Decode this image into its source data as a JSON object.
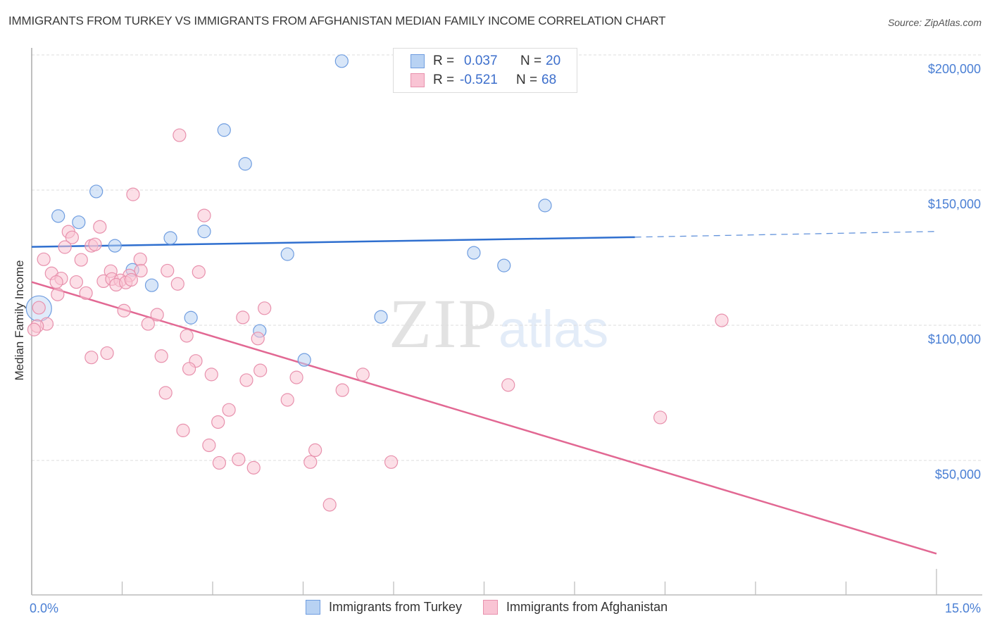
{
  "header": {
    "title": "IMMIGRANTS FROM TURKEY VS IMMIGRANTS FROM AFGHANISTAN MEDIAN FAMILY INCOME CORRELATION CHART",
    "source": "Source: ZipAtlas.com"
  },
  "legend_stats": [
    {
      "r_label": "R =",
      "r_value": "0.037",
      "n_label": "N =",
      "n_value": "20"
    },
    {
      "r_label": "R =",
      "r_value": "-0.521",
      "n_label": "N =",
      "n_value": "68"
    }
  ],
  "watermark": {
    "zip": "ZIP",
    "atlas": "atlas"
  },
  "colors": {
    "turkey_fill": "#b8d2f3",
    "turkey_stroke": "#6f9de0",
    "turkey_line": "#2f6fcf",
    "afghanistan_fill": "#f9c4d4",
    "afghanistan_stroke": "#e891ad",
    "afghanistan_line": "#e26893",
    "axis_text": "#4a7fd4"
  },
  "chart_data": {
    "type": "scatter",
    "title": "IMMIGRANTS FROM TURKEY VS IMMIGRANTS FROM AFGHANISTAN MEDIAN FAMILY INCOME CORRELATION CHART",
    "xlabel": "",
    "ylabel": "Median Family Income",
    "xlim": [
      0,
      15
    ],
    "ylim": [
      0,
      205000
    ],
    "x_tick_labels": [
      {
        "value": 0,
        "label": "0.0%"
      },
      {
        "value": 15,
        "label": "15.0%"
      }
    ],
    "x_minor_ticks": [
      0,
      1.5,
      3,
      4.5,
      6,
      7.5,
      9,
      10.5,
      12,
      13.5,
      15
    ],
    "y_ticks": [
      {
        "value": 50000,
        "label": "$50,000"
      },
      {
        "value": 100000,
        "label": "$100,000"
      },
      {
        "value": 150000,
        "label": "$150,000"
      },
      {
        "value": 200000,
        "label": "$200,000"
      }
    ],
    "grid": true,
    "legend_position": "bottom-center",
    "series": [
      {
        "name": "Immigrants from Turkey",
        "r": 0.037,
        "n": 20,
        "trend": {
          "x0": 0,
          "y0": 129000,
          "x_solid_end": 10.0,
          "y_solid_end": 132600,
          "x1": 15,
          "y1": 134700
        },
        "points": [
          {
            "x": 5.14,
            "y": 197700
          },
          {
            "x": 3.19,
            "y": 172200
          },
          {
            "x": 3.54,
            "y": 159700
          },
          {
            "x": 1.07,
            "y": 149500
          },
          {
            "x": 0.44,
            "y": 140400
          },
          {
            "x": 0.78,
            "y": 138100
          },
          {
            "x": 8.51,
            "y": 144300
          },
          {
            "x": 2.86,
            "y": 134700
          },
          {
            "x": 2.3,
            "y": 132300
          },
          {
            "x": 1.38,
            "y": 129400
          },
          {
            "x": 4.24,
            "y": 126300
          },
          {
            "x": 7.33,
            "y": 126800
          },
          {
            "x": 7.83,
            "y": 122100
          },
          {
            "x": 1.67,
            "y": 120500
          },
          {
            "x": 1.99,
            "y": 114800
          },
          {
            "x": 2.64,
            "y": 102800
          },
          {
            "x": 5.79,
            "y": 103100
          },
          {
            "x": 3.78,
            "y": 97900
          },
          {
            "x": 4.52,
            "y": 87200
          },
          {
            "x": 0.12,
            "y": 106200,
            "large": true
          }
        ]
      },
      {
        "name": "Immigrants from Afghanistan",
        "r": -0.521,
        "n": 68,
        "trend": {
          "x0": 0,
          "y0": 116000,
          "x1": 15,
          "y1": 15500
        },
        "points": [
          {
            "x": 2.45,
            "y": 170300
          },
          {
            "x": 1.68,
            "y": 148400
          },
          {
            "x": 2.86,
            "y": 140600
          },
          {
            "x": 0.61,
            "y": 134600
          },
          {
            "x": 0.67,
            "y": 132500
          },
          {
            "x": 1.13,
            "y": 136400
          },
          {
            "x": 0.99,
            "y": 129400
          },
          {
            "x": 0.55,
            "y": 128900
          },
          {
            "x": 1.05,
            "y": 129900
          },
          {
            "x": 1.8,
            "y": 124400
          },
          {
            "x": 0.2,
            "y": 124400
          },
          {
            "x": 0.82,
            "y": 124200
          },
          {
            "x": 0.33,
            "y": 119200
          },
          {
            "x": 1.31,
            "y": 120000
          },
          {
            "x": 2.25,
            "y": 120200
          },
          {
            "x": 2.77,
            "y": 119700
          },
          {
            "x": 1.81,
            "y": 120200
          },
          {
            "x": 1.62,
            "y": 118400
          },
          {
            "x": 0.49,
            "y": 117300
          },
          {
            "x": 0.74,
            "y": 116000
          },
          {
            "x": 1.19,
            "y": 116300
          },
          {
            "x": 1.33,
            "y": 117100
          },
          {
            "x": 1.47,
            "y": 116600
          },
          {
            "x": 1.4,
            "y": 115000
          },
          {
            "x": 1.56,
            "y": 115800
          },
          {
            "x": 1.65,
            "y": 116800
          },
          {
            "x": 2.42,
            "y": 115300
          },
          {
            "x": 0.41,
            "y": 116000
          },
          {
            "x": 0.9,
            "y": 111900
          },
          {
            "x": 0.43,
            "y": 111400
          },
          {
            "x": 1.53,
            "y": 105400
          },
          {
            "x": 2.08,
            "y": 103900
          },
          {
            "x": 1.93,
            "y": 100500
          },
          {
            "x": 0.25,
            "y": 100500
          },
          {
            "x": 0.09,
            "y": 99700
          },
          {
            "x": 0.04,
            "y": 98400
          },
          {
            "x": 0.12,
            "y": 106500
          },
          {
            "x": 2.57,
            "y": 96100
          },
          {
            "x": 3.5,
            "y": 102900
          },
          {
            "x": 3.86,
            "y": 106300
          },
          {
            "x": 3.75,
            "y": 95100
          },
          {
            "x": 0.99,
            "y": 88100
          },
          {
            "x": 1.25,
            "y": 89700
          },
          {
            "x": 2.15,
            "y": 88600
          },
          {
            "x": 2.72,
            "y": 86800
          },
          {
            "x": 2.61,
            "y": 83900
          },
          {
            "x": 2.98,
            "y": 81800
          },
          {
            "x": 3.79,
            "y": 83300
          },
          {
            "x": 3.56,
            "y": 79700
          },
          {
            "x": 4.39,
            "y": 80700
          },
          {
            "x": 5.49,
            "y": 81800
          },
          {
            "x": 5.15,
            "y": 76000
          },
          {
            "x": 7.9,
            "y": 77900
          },
          {
            "x": 2.22,
            "y": 75000
          },
          {
            "x": 3.27,
            "y": 68700
          },
          {
            "x": 4.24,
            "y": 72400
          },
          {
            "x": 3.09,
            "y": 64200
          },
          {
            "x": 2.51,
            "y": 61100
          },
          {
            "x": 2.94,
            "y": 55600
          },
          {
            "x": 3.43,
            "y": 50400
          },
          {
            "x": 3.11,
            "y": 49100
          },
          {
            "x": 3.68,
            "y": 47300
          },
          {
            "x": 4.7,
            "y": 53800
          },
          {
            "x": 4.62,
            "y": 49400
          },
          {
            "x": 5.96,
            "y": 49400
          },
          {
            "x": 4.94,
            "y": 33600
          },
          {
            "x": 11.44,
            "y": 101800
          },
          {
            "x": 10.42,
            "y": 65900
          }
        ]
      }
    ]
  },
  "bottom_legend": [
    {
      "label": "Immigrants from Turkey"
    },
    {
      "label": "Immigrants from Afghanistan"
    }
  ]
}
